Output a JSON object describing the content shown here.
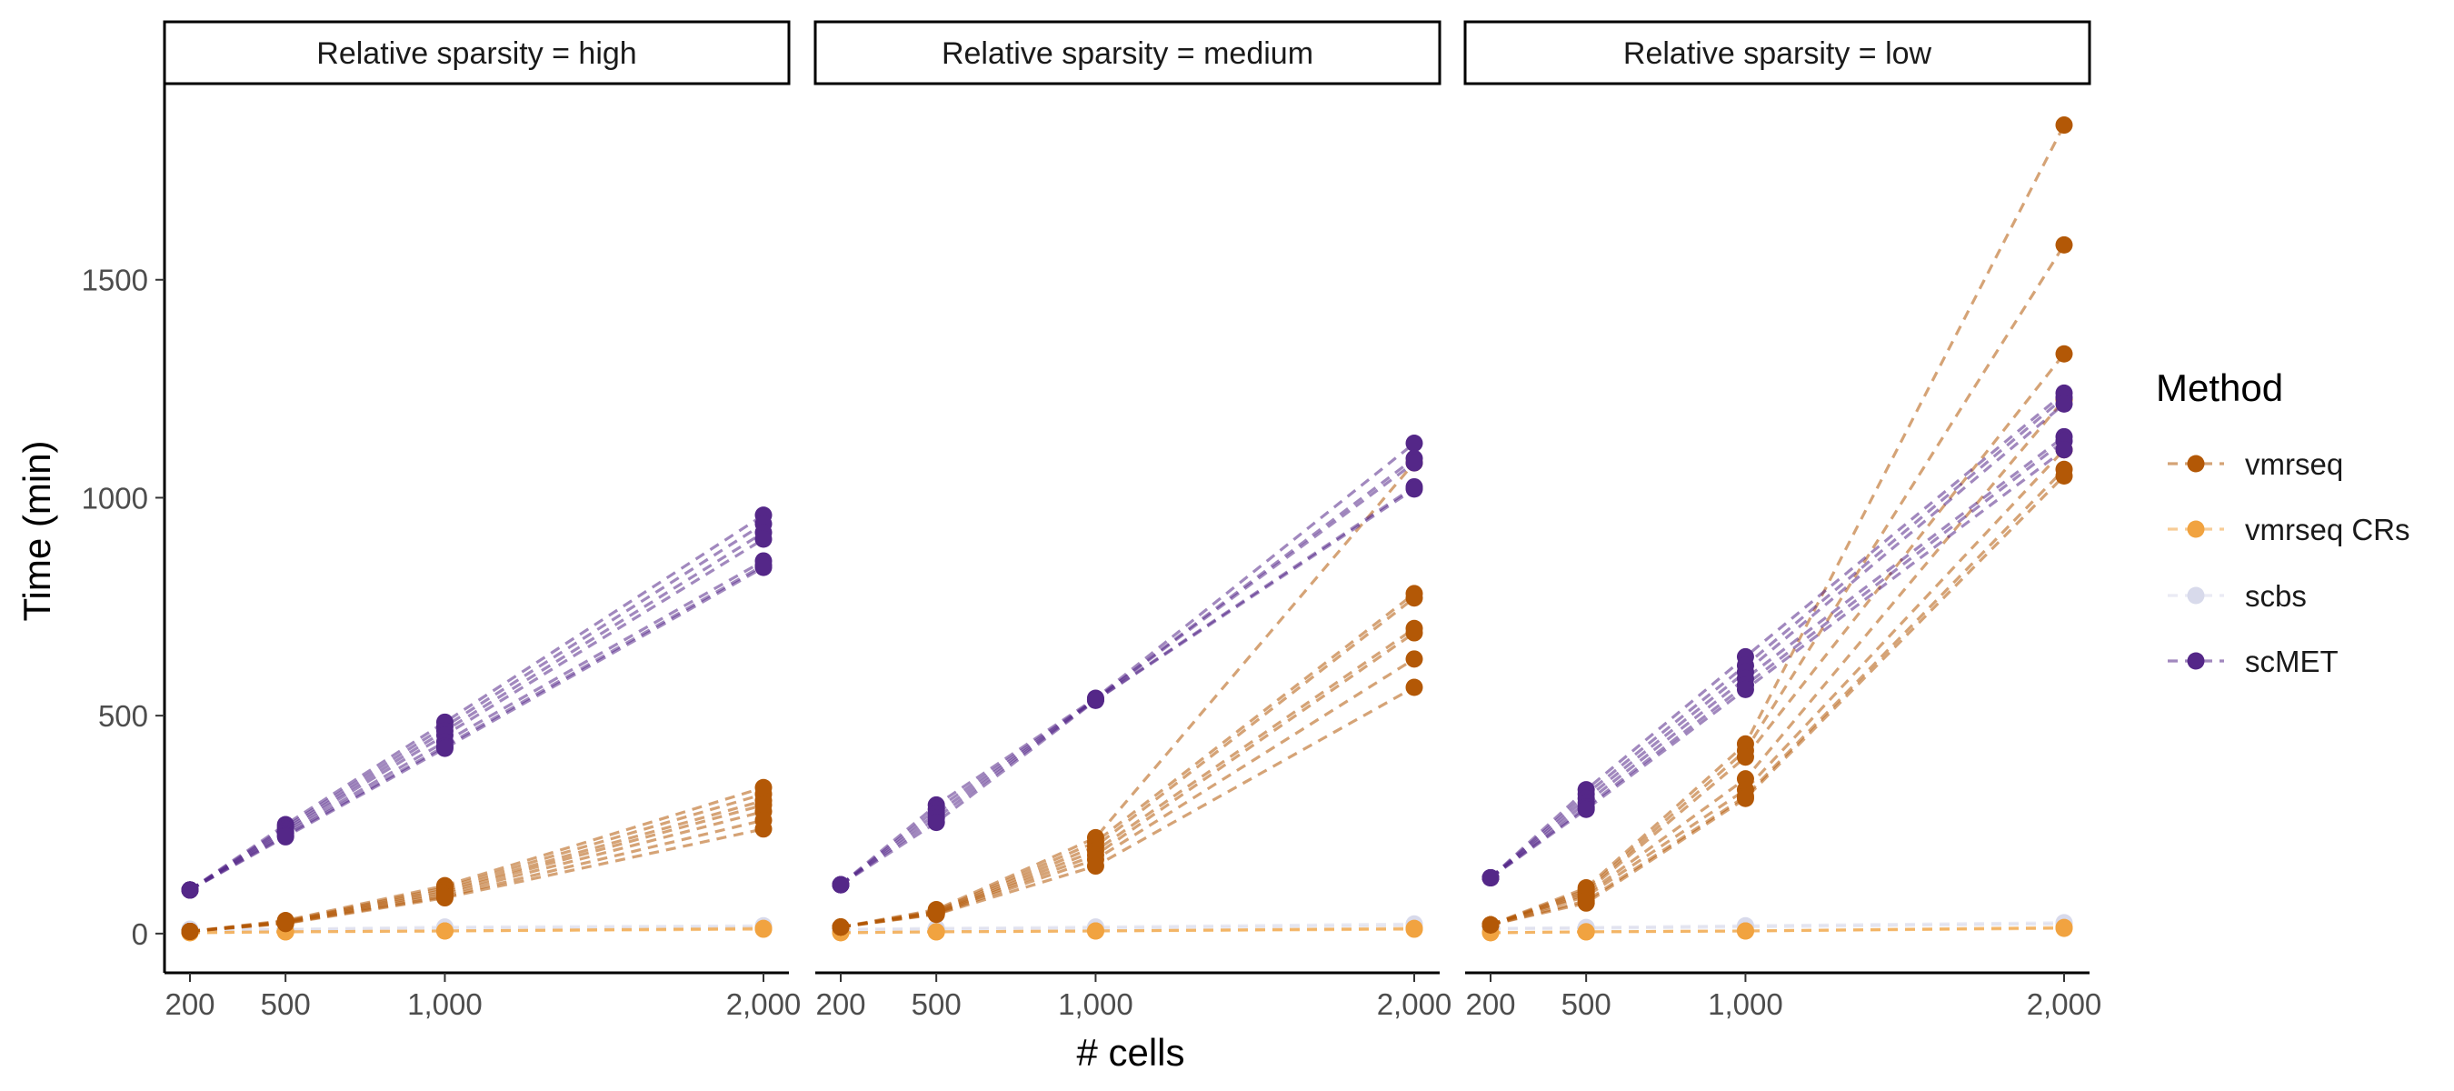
{
  "chart_data": {
    "type": "line",
    "facet_label_prefix": "Relative sparsity = ",
    "xlabel": "# cells",
    "ylabel": "Time (min)",
    "x": [
      200,
      500,
      1000,
      2000
    ],
    "x_tick_labels": [
      "200",
      "500",
      "1,000",
      "2,000"
    ],
    "ylim": [
      -90,
      1950
    ],
    "y_ticks": [
      0,
      500,
      1000,
      1500
    ],
    "y_tick_labels": [
      "0",
      "500",
      "1000",
      "1500"
    ],
    "grid": false,
    "legend": {
      "title": "Method",
      "position": "right",
      "entries": [
        "vmrseq",
        "vmrseq CRs",
        "scbs",
        "scMET"
      ]
    },
    "colors": {
      "vmrseq": "#b35806",
      "vmrseq CRs": "#f1a340",
      "scbs": "#d8daeb",
      "scMET": "#542788"
    },
    "method_order": [
      "scbs",
      "vmrseq CRs",
      "vmrseq",
      "scMET"
    ],
    "panels": [
      {
        "sparsity": "high",
        "series": {
          "vmrseq": [
            [
              5,
              30,
              110,
              335
            ],
            [
              5,
              28,
              105,
              320
            ],
            [
              5,
              27,
              100,
              305
            ],
            [
              5,
              26,
              95,
              295
            ],
            [
              5,
              25,
              90,
              280
            ],
            [
              5,
              24,
              85,
              260
            ],
            [
              5,
              23,
              82,
              240
            ]
          ],
          "vmrseq CRs": [
            [
              2,
              4,
              6,
              12
            ],
            [
              2,
              4,
              6,
              10
            ]
          ],
          "scbs": [
            [
              10,
              10,
              15,
              18
            ],
            [
              8,
              9,
              12,
              15
            ]
          ],
          "scMET": [
            [
              100,
              250,
              485,
              960
            ],
            [
              100,
              245,
              475,
              940
            ],
            [
              100,
              240,
              465,
              920
            ],
            [
              100,
              235,
              455,
              905
            ],
            [
              100,
              230,
              440,
              855
            ],
            [
              100,
              225,
              430,
              845
            ],
            [
              100,
              222,
              425,
              840
            ]
          ]
        }
      },
      {
        "sparsity": "medium",
        "series": {
          "vmrseq": [
            [
              15,
              55,
              220,
              1080
            ],
            [
              15,
              52,
              210,
              780
            ],
            [
              15,
              50,
              200,
              770
            ],
            [
              15,
              48,
              190,
              700
            ],
            [
              15,
              47,
              180,
              690
            ],
            [
              15,
              45,
              170,
              630
            ],
            [
              15,
              44,
              155,
              565
            ]
          ],
          "vmrseq CRs": [
            [
              2,
              4,
              6,
              12
            ],
            [
              2,
              4,
              6,
              10
            ]
          ],
          "scbs": [
            [
              10,
              12,
              15,
              22
            ],
            [
              8,
              10,
              12,
              18
            ]
          ],
          "scMET": [
            [
              112,
              295,
              540,
              1125
            ],
            [
              112,
              285,
              538,
              1090
            ],
            [
              112,
              275,
              537,
              1080
            ],
            [
              112,
              265,
              536,
              1025
            ],
            [
              112,
              255,
              535,
              1020
            ]
          ]
        }
      },
      {
        "sparsity": "low",
        "series": {
          "vmrseq": [
            [
              20,
              105,
              435,
              1855
            ],
            [
              20,
              100,
              420,
              1580
            ],
            [
              20,
              95,
              405,
              1330
            ],
            [
              20,
              90,
              355,
              1225
            ],
            [
              20,
              85,
              330,
              1110
            ],
            [
              20,
              75,
              315,
              1065
            ],
            [
              20,
              70,
              310,
              1050
            ]
          ],
          "vmrseq CRs": [
            [
              2,
              4,
              6,
              14
            ],
            [
              2,
              4,
              6,
              12
            ]
          ],
          "scbs": [
            [
              12,
              14,
              18,
              25
            ],
            [
              10,
              12,
              15,
              22
            ]
          ],
          "scMET": [
            [
              128,
              330,
              635,
              1240
            ],
            [
              128,
              320,
              615,
              1230
            ],
            [
              128,
              310,
              600,
              1215
            ],
            [
              128,
              300,
              585,
              1140
            ],
            [
              128,
              290,
              570,
              1130
            ],
            [
              128,
              285,
              560,
              1110
            ]
          ]
        }
      }
    ]
  }
}
